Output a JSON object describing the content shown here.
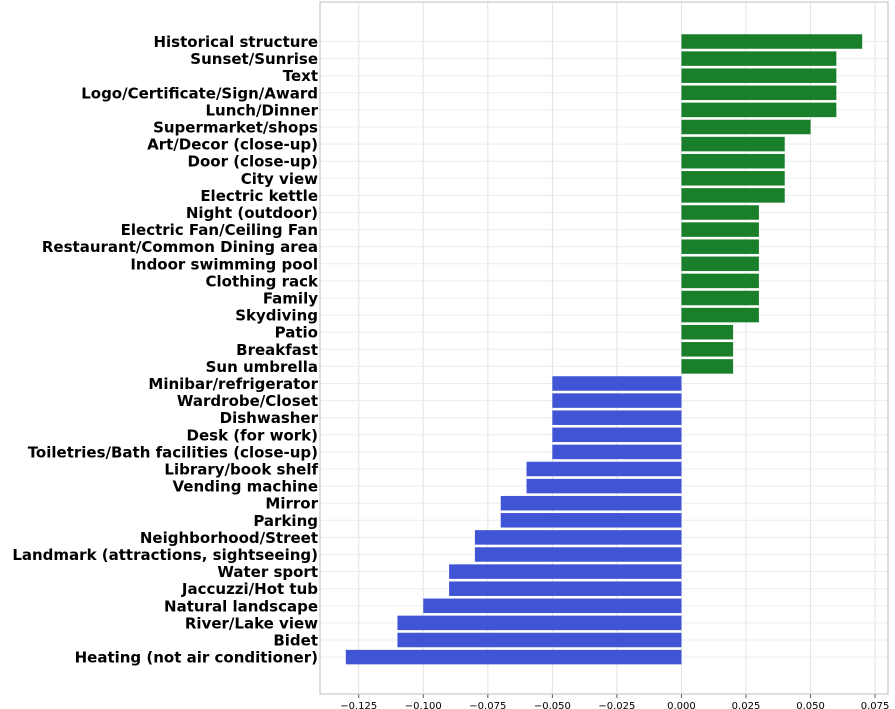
{
  "chart_data": {
    "type": "bar",
    "orientation": "horizontal",
    "title": "",
    "xlabel": "",
    "ylabel": "",
    "xlim": [
      -0.14,
      0.08
    ],
    "xticks": [
      -0.125,
      -0.1,
      -0.075,
      -0.05,
      -0.025,
      0.0,
      0.025,
      0.05,
      0.075
    ],
    "xtick_labels": [
      "−0.125",
      "−0.100",
      "−0.075",
      "−0.050",
      "−0.025",
      "0.000",
      "0.025",
      "0.050",
      "0.075"
    ],
    "grid": true,
    "positive_color": "#1a7f2a",
    "negative_color": "#4055d6",
    "categories": [
      "Historical structure",
      "Sunset/Sunrise",
      "Text",
      "Logo/Certificate/Sign/Award",
      "Lunch/Dinner",
      "Supermarket/shops",
      "Art/Decor (close-up)",
      "Door (close-up)",
      "City view",
      "Electric kettle",
      "Night (outdoor)",
      "Electric Fan/Ceiling Fan",
      "Restaurant/Common Dining area",
      "Indoor swimming pool",
      "Clothing rack",
      "Family",
      "Skydiving",
      "Patio",
      "Breakfast",
      "Sun umbrella",
      "Minibar/refrigerator",
      "Wardrobe/Closet",
      "Dishwasher",
      "Desk (for work)",
      "Toiletries/Bath facilities (close-up)",
      "Library/book shelf",
      "Vending machine",
      "Mirror",
      "Parking",
      "Neighborhood/Street",
      "Landmark (attractions, sightseeing)",
      "Water sport",
      "Jaccuzzi/Hot tub",
      "Natural landscape",
      "River/Lake view",
      "Bidet",
      "Heating (not air conditioner)"
    ],
    "values": [
      0.07,
      0.06,
      0.06,
      0.06,
      0.06,
      0.05,
      0.04,
      0.04,
      0.04,
      0.04,
      0.03,
      0.03,
      0.03,
      0.03,
      0.03,
      0.03,
      0.03,
      0.02,
      0.02,
      0.02,
      -0.05,
      -0.05,
      -0.05,
      -0.05,
      -0.05,
      -0.06,
      -0.06,
      -0.07,
      -0.07,
      -0.08,
      -0.08,
      -0.09,
      -0.09,
      -0.1,
      -0.11,
      -0.11,
      -0.13
    ]
  }
}
